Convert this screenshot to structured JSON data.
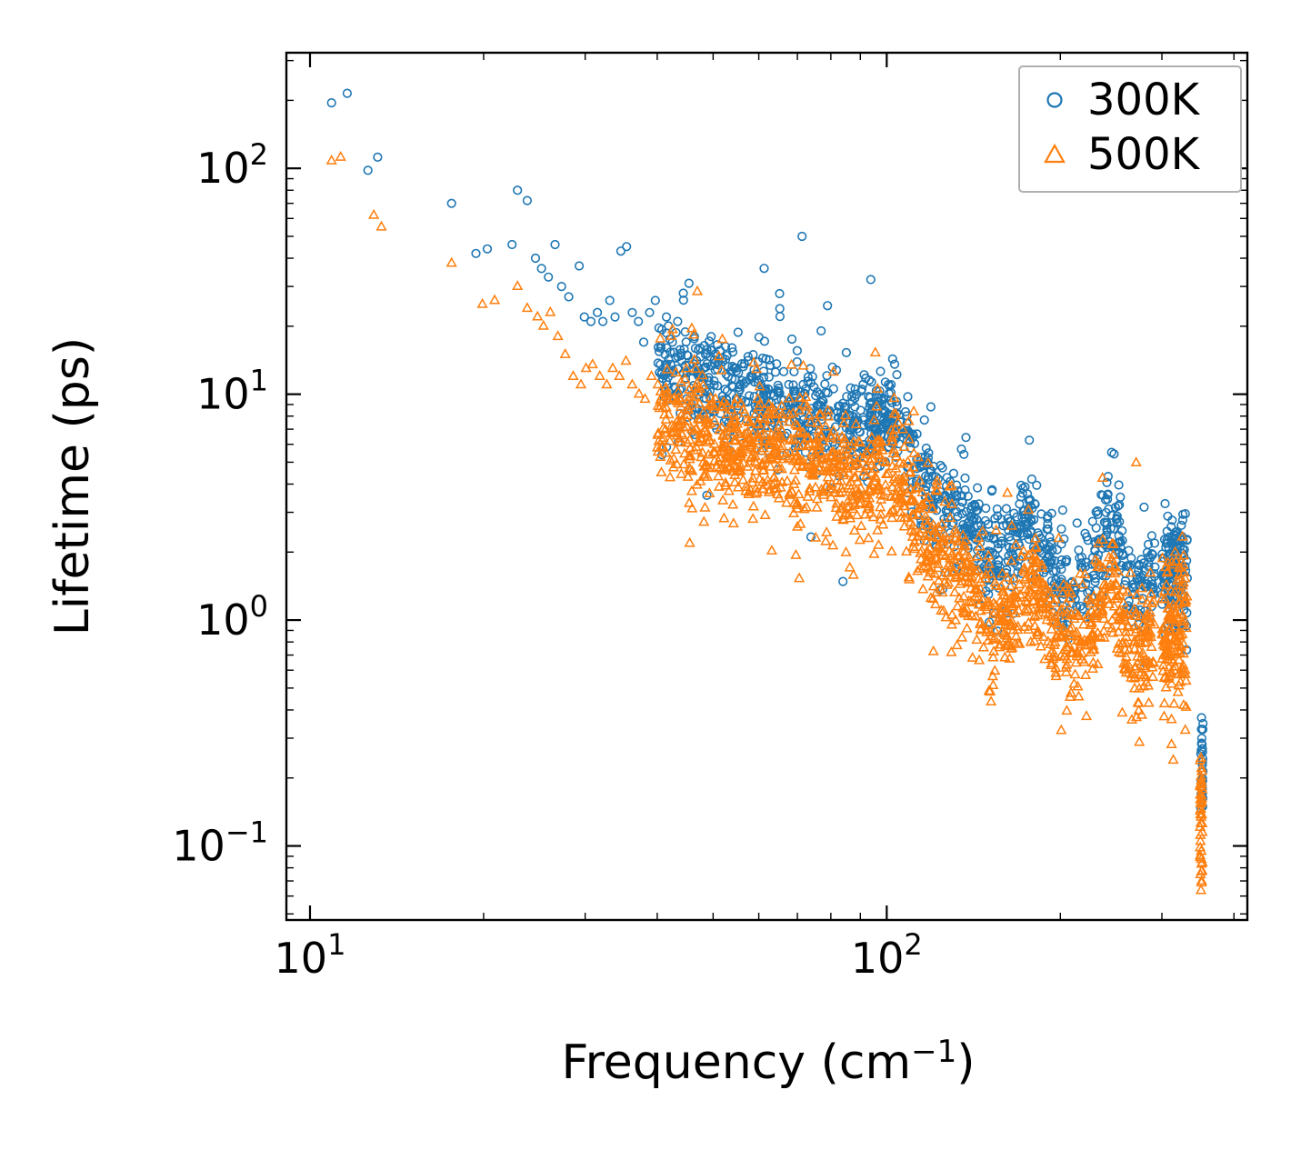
{
  "figure": {
    "background": "#ffffff"
  },
  "chart_data": {
    "type": "scatter",
    "x_scale": "log",
    "y_scale": "log",
    "xlabel_main": "Frequency (cm",
    "xlabel_sup": "−1",
    "xlabel_close": ")",
    "ylabel": "Lifetime (ps)",
    "xlim": [
      9.1,
      422
    ],
    "ylim": [
      0.047,
      325
    ],
    "x_ticks": [
      {
        "v": 10,
        "base": "10",
        "exp": "1"
      },
      {
        "v": 100,
        "base": "10",
        "exp": "2"
      }
    ],
    "y_ticks": [
      {
        "v": 0.1,
        "base": "10",
        "exp": "−1"
      },
      {
        "v": 1,
        "base": "10",
        "exp": "0"
      },
      {
        "v": 10,
        "base": "10",
        "exp": "1"
      },
      {
        "v": 100,
        "base": "10",
        "exp": "2"
      }
    ],
    "x_minor_ticks": [
      20,
      30,
      40,
      50,
      60,
      70,
      80,
      90,
      200,
      300,
      400
    ],
    "y_minor_ticks": [
      0.05,
      0.06,
      0.07,
      0.08,
      0.09,
      0.2,
      0.3,
      0.4,
      0.5,
      0.6,
      0.7,
      0.8,
      0.9,
      2,
      3,
      4,
      5,
      6,
      7,
      8,
      9,
      20,
      30,
      40,
      50,
      60,
      70,
      80,
      90,
      200,
      300
    ],
    "legend": {
      "position": "upper right",
      "border_color": "#b0b0b0"
    },
    "series": [
      {
        "name": "300K",
        "marker": "circle",
        "color": "#1f77b4",
        "sparse_points": [
          [
            10.9,
            195
          ],
          [
            11.6,
            215
          ],
          [
            12.6,
            98
          ],
          [
            13.1,
            112
          ],
          [
            17.6,
            70
          ],
          [
            19.4,
            42
          ],
          [
            20.3,
            44
          ],
          [
            22.4,
            46
          ],
          [
            22.9,
            80
          ],
          [
            23.8,
            72
          ],
          [
            24.6,
            40
          ],
          [
            25.2,
            36
          ],
          [
            25.9,
            33
          ],
          [
            26.6,
            46
          ],
          [
            27.3,
            30
          ],
          [
            28.1,
            27
          ],
          [
            29.3,
            37
          ],
          [
            29.9,
            22
          ],
          [
            30.7,
            21
          ],
          [
            31.5,
            23
          ],
          [
            32.2,
            21
          ],
          [
            33.1,
            26
          ],
          [
            33.8,
            22
          ],
          [
            34.6,
            43
          ],
          [
            35.4,
            45
          ],
          [
            36.2,
            23
          ],
          [
            37.1,
            21
          ],
          [
            37.9,
            17
          ],
          [
            38.8,
            23
          ],
          [
            39.7,
            26
          ],
          [
            40.6,
            16
          ],
          [
            41.5,
            22
          ],
          [
            42.5,
            17
          ],
          [
            43.4,
            21
          ],
          [
            44.4,
            28
          ],
          [
            45.4,
            31
          ],
          [
            46.4,
            18
          ],
          [
            47.5,
            16
          ],
          [
            48.5,
            15
          ],
          [
            49.6,
            18
          ]
        ],
        "band": {
          "x_range": [
            40,
            292
          ],
          "n": 1300,
          "sigma": 0.11,
          "trend": [
            [
              40,
              13
            ],
            [
              50,
              11
            ],
            [
              60,
              9.5
            ],
            [
              70,
              8.5
            ],
            [
              80,
              8
            ],
            [
              90,
              7
            ],
            [
              98,
              8
            ],
            [
              105,
              7.5
            ],
            [
              115,
              4.2
            ],
            [
              125,
              3.4
            ],
            [
              135,
              3.0
            ],
            [
              145,
              2.2
            ],
            [
              152,
              1.8
            ],
            [
              160,
              2.0
            ],
            [
              170,
              2.6
            ],
            [
              178,
              2.8
            ],
            [
              190,
              1.8
            ],
            [
              200,
              1.5
            ],
            [
              215,
              1.5
            ],
            [
              228,
              1.7
            ],
            [
              240,
              2.6
            ],
            [
              248,
              3.0
            ],
            [
              256,
              1.8
            ],
            [
              265,
              1.5
            ],
            [
              278,
              1.4
            ],
            [
              292,
              1.5
            ]
          ]
        },
        "cluster": {
          "x_range": [
            300,
            332
          ],
          "n": 150,
          "y_center": 1.7,
          "sigma": 0.13
        },
        "column": {
          "x": 352,
          "y_range": [
            0.14,
            0.37
          ],
          "n": 28
        }
      },
      {
        "name": "500K",
        "marker": "triangle",
        "color": "#ff7f0e",
        "sparse_points": [
          [
            10.9,
            108
          ],
          [
            11.3,
            112
          ],
          [
            12.9,
            62
          ],
          [
            13.3,
            55
          ],
          [
            17.6,
            38
          ],
          [
            19.9,
            25
          ],
          [
            20.9,
            26
          ],
          [
            22.9,
            30
          ],
          [
            23.8,
            24
          ],
          [
            24.8,
            22
          ],
          [
            25.4,
            20
          ],
          [
            26.1,
            23
          ],
          [
            26.9,
            18
          ],
          [
            27.7,
            15
          ],
          [
            28.6,
            12
          ],
          [
            29.5,
            11
          ],
          [
            30.1,
            13
          ],
          [
            30.9,
            13.5
          ],
          [
            31.8,
            12
          ],
          [
            32.7,
            11
          ],
          [
            33.5,
            13
          ],
          [
            34.4,
            12
          ],
          [
            35.3,
            14
          ],
          [
            36.2,
            11
          ],
          [
            37.2,
            10
          ],
          [
            38.1,
            9.5
          ],
          [
            39.1,
            12
          ],
          [
            40.1,
            11
          ]
        ],
        "band": {
          "x_range": [
            40,
            292
          ],
          "n": 1500,
          "sigma": 0.13,
          "trend": [
            [
              40,
              8
            ],
            [
              50,
              6.5
            ],
            [
              60,
              5.5
            ],
            [
              70,
              5.0
            ],
            [
              80,
              4.6
            ],
            [
              90,
              4.0
            ],
            [
              98,
              4.6
            ],
            [
              105,
              4.2
            ],
            [
              115,
              2.4
            ],
            [
              125,
              1.9
            ],
            [
              135,
              1.7
            ],
            [
              145,
              1.2
            ],
            [
              152,
              0.95
            ],
            [
              160,
              1.0
            ],
            [
              170,
              1.4
            ],
            [
              178,
              1.5
            ],
            [
              190,
              0.95
            ],
            [
              200,
              0.8
            ],
            [
              215,
              0.8
            ],
            [
              228,
              0.9
            ],
            [
              240,
              1.4
            ],
            [
              248,
              1.7
            ],
            [
              256,
              0.95
            ],
            [
              265,
              0.8
            ],
            [
              278,
              0.75
            ],
            [
              292,
              0.8
            ]
          ]
        },
        "cluster": {
          "x_range": [
            300,
            332
          ],
          "n": 150,
          "y_center": 0.85,
          "sigma": 0.17
        },
        "column": {
          "x": 351,
          "y_range": [
            0.062,
            0.26
          ],
          "n": 45
        }
      }
    ]
  }
}
